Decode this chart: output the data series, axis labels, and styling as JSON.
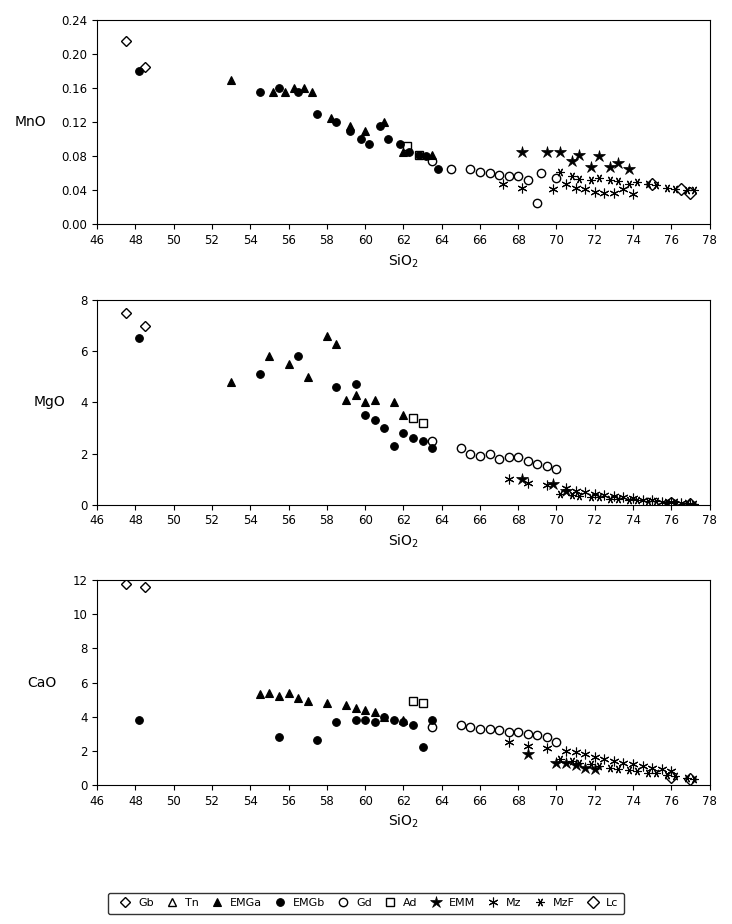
{
  "Gb": {
    "MnO": {
      "x": [
        47.5,
        48.5
      ],
      "y": [
        0.215,
        0.185
      ]
    },
    "MgO": {
      "x": [
        47.5,
        48.5
      ],
      "y": [
        7.5,
        7.0
      ]
    },
    "CaO": {
      "x": [
        47.5,
        48.5
      ],
      "y": [
        11.8,
        11.6
      ]
    }
  },
  "Tn": {
    "MnO": {
      "x": [],
      "y": []
    },
    "MgO": {
      "x": [],
      "y": []
    },
    "CaO": {
      "x": [],
      "y": []
    }
  },
  "EMGa": {
    "MnO": {
      "x": [
        53.0,
        55.2,
        55.8,
        56.3,
        56.8,
        57.2,
        58.2,
        59.2,
        60.0,
        61.0,
        62.0,
        63.5
      ],
      "y": [
        0.17,
        0.155,
        0.155,
        0.16,
        0.16,
        0.155,
        0.125,
        0.115,
        0.11,
        0.12,
        0.085,
        0.082
      ]
    },
    "MgO": {
      "x": [
        53.0,
        55.0,
        56.0,
        57.0,
        58.0,
        58.5,
        59.0,
        59.5,
        60.0,
        60.5,
        61.5,
        62.0
      ],
      "y": [
        4.8,
        5.8,
        5.5,
        5.0,
        6.6,
        6.3,
        4.1,
        4.3,
        4.0,
        4.1,
        4.0,
        3.5
      ]
    },
    "CaO": {
      "x": [
        54.5,
        55.0,
        55.5,
        56.0,
        56.5,
        57.0,
        58.0,
        59.0,
        59.5,
        60.0,
        60.5,
        61.0,
        62.0
      ],
      "y": [
        5.3,
        5.4,
        5.2,
        5.4,
        5.1,
        4.9,
        4.8,
        4.7,
        4.5,
        4.4,
        4.3,
        4.0,
        3.8
      ]
    }
  },
  "EMGb": {
    "MnO": {
      "x": [
        48.2,
        54.5,
        55.5,
        56.5,
        57.5,
        58.5,
        59.2,
        59.8,
        60.2,
        60.8,
        61.2,
        61.8,
        62.3,
        62.8,
        63.2,
        63.8
      ],
      "y": [
        0.18,
        0.155,
        0.16,
        0.155,
        0.13,
        0.12,
        0.11,
        0.1,
        0.095,
        0.115,
        0.1,
        0.095,
        0.085,
        0.082,
        0.08,
        0.065
      ]
    },
    "MgO": {
      "x": [
        48.2,
        54.5,
        56.5,
        58.5,
        59.5,
        60.0,
        60.5,
        61.0,
        61.5,
        62.0,
        62.5,
        63.0,
        63.5
      ],
      "y": [
        6.5,
        5.1,
        5.8,
        4.6,
        4.7,
        3.5,
        3.3,
        3.0,
        2.3,
        2.8,
        2.6,
        2.5,
        2.2
      ]
    },
    "CaO": {
      "x": [
        48.2,
        55.5,
        57.5,
        58.5,
        59.5,
        60.0,
        60.5,
        61.0,
        61.5,
        62.0,
        62.5,
        63.0,
        63.5
      ],
      "y": [
        3.8,
        2.8,
        2.6,
        3.7,
        3.8,
        3.8,
        3.7,
        4.0,
        3.8,
        3.7,
        3.5,
        2.2,
        3.8
      ]
    }
  },
  "Gd": {
    "MnO": {
      "x": [
        63.5,
        64.5,
        65.5,
        66.0,
        66.5,
        67.0,
        67.5,
        68.0,
        68.5,
        69.2,
        70.0
      ],
      "y": [
        0.075,
        0.065,
        0.065,
        0.062,
        0.06,
        0.058,
        0.057,
        0.057,
        0.052,
        0.06,
        0.055
      ]
    },
    "MgO": {
      "x": [
        63.5,
        65.0,
        65.5,
        66.0,
        66.5,
        67.0,
        67.5,
        68.0,
        68.5,
        69.0,
        69.5,
        70.0
      ],
      "y": [
        2.5,
        2.2,
        2.0,
        1.9,
        2.0,
        1.8,
        1.85,
        1.85,
        1.7,
        1.6,
        1.5,
        1.4
      ]
    },
    "CaO": {
      "x": [
        63.5,
        65.0,
        65.5,
        66.0,
        66.5,
        67.0,
        67.5,
        68.0,
        68.5,
        69.0,
        69.5,
        70.0
      ],
      "y": [
        3.4,
        3.5,
        3.4,
        3.3,
        3.3,
        3.2,
        3.1,
        3.1,
        3.0,
        2.9,
        2.8,
        2.5
      ]
    },
    "MnO_extra": {
      "x": [
        69.0
      ],
      "y": [
        0.025
      ]
    }
  },
  "Ad": {
    "MnO": {
      "x": [
        62.2,
        62.8
      ],
      "y": [
        0.092,
        0.082
      ]
    },
    "MgO": {
      "x": [
        62.5,
        63.0
      ],
      "y": [
        3.4,
        3.2
      ]
    },
    "CaO": {
      "x": [
        62.5,
        63.0
      ],
      "y": [
        4.9,
        4.8
      ]
    }
  },
  "EMM": {
    "MnO": {
      "x": [
        68.2,
        69.5,
        70.2,
        70.8,
        71.2,
        71.8,
        72.2,
        72.8,
        73.2,
        73.8
      ],
      "y": [
        0.085,
        0.085,
        0.085,
        0.075,
        0.082,
        0.068,
        0.08,
        0.068,
        0.072,
        0.065
      ]
    },
    "MgO": {
      "x": [
        68.2,
        69.8,
        70.5
      ],
      "y": [
        1.0,
        0.8,
        0.55
      ]
    },
    "CaO": {
      "x": [
        68.5,
        70.0,
        70.5,
        71.0,
        71.5,
        72.0
      ],
      "y": [
        1.8,
        1.3,
        1.25,
        1.15,
        1.0,
        0.9
      ]
    }
  },
  "Mz": {
    "MnO": {
      "x": [
        67.2,
        68.2,
        69.8,
        70.5,
        71.0,
        71.5,
        72.0,
        72.5,
        73.0,
        73.5,
        74.0
      ],
      "y": [
        0.047,
        0.043,
        0.042,
        0.048,
        0.043,
        0.042,
        0.038,
        0.037,
        0.037,
        0.042,
        0.036
      ]
    },
    "MgO": {
      "x": [
        67.5,
        68.5,
        69.5,
        70.5,
        71.0,
        71.5,
        72.0,
        72.5,
        73.0,
        73.5,
        74.0,
        74.5,
        75.0,
        75.5,
        76.0,
        76.5,
        77.0
      ],
      "y": [
        1.0,
        0.85,
        0.75,
        0.65,
        0.55,
        0.5,
        0.42,
        0.38,
        0.32,
        0.28,
        0.25,
        0.2,
        0.18,
        0.12,
        0.1,
        0.08,
        0.04
      ]
    },
    "CaO": {
      "x": [
        67.5,
        68.5,
        69.5,
        70.5,
        71.0,
        71.5,
        72.0,
        72.5,
        73.0,
        73.5,
        74.0,
        74.5,
        75.0,
        75.5,
        76.0
      ],
      "y": [
        2.5,
        2.3,
        2.15,
        2.0,
        1.95,
        1.8,
        1.65,
        1.5,
        1.4,
        1.3,
        1.2,
        1.1,
        1.0,
        0.9,
        0.8
      ]
    }
  },
  "MzF": {
    "MnO": {
      "x": [
        70.2,
        70.8,
        71.2,
        71.8,
        72.2,
        72.8,
        73.2,
        73.8,
        74.2,
        74.8,
        75.2,
        75.8,
        76.2,
        76.8,
        77.2
      ],
      "y": [
        0.062,
        0.057,
        0.053,
        0.052,
        0.055,
        0.052,
        0.051,
        0.048,
        0.05,
        0.048,
        0.046,
        0.043,
        0.042,
        0.041,
        0.04
      ]
    },
    "MgO": {
      "x": [
        70.2,
        70.8,
        71.2,
        71.8,
        72.2,
        72.8,
        73.2,
        73.8,
        74.2,
        74.8,
        75.2,
        75.8,
        76.2,
        76.8,
        77.2
      ],
      "y": [
        0.42,
        0.38,
        0.33,
        0.28,
        0.28,
        0.23,
        0.22,
        0.19,
        0.18,
        0.14,
        0.14,
        0.1,
        0.09,
        0.08,
        0.04
      ]
    },
    "CaO": {
      "x": [
        70.2,
        70.8,
        71.2,
        71.8,
        72.2,
        72.8,
        73.2,
        73.8,
        74.2,
        74.8,
        75.2,
        75.8,
        76.2,
        76.8,
        77.2
      ],
      "y": [
        1.5,
        1.4,
        1.3,
        1.2,
        1.1,
        1.0,
        0.92,
        0.85,
        0.8,
        0.7,
        0.68,
        0.58,
        0.5,
        0.42,
        0.35
      ]
    }
  },
  "Lc": {
    "MnO": {
      "x": [
        75.0,
        76.5,
        77.0
      ],
      "y": [
        0.047,
        0.042,
        0.037
      ]
    },
    "MgO": {
      "x": [
        76.0,
        77.0
      ],
      "y": [
        0.08,
        0.04
      ]
    },
    "CaO": {
      "x": [
        76.0,
        77.0
      ],
      "y": [
        0.45,
        0.35
      ]
    }
  },
  "xlim": [
    46,
    78
  ],
  "MnO_ylim": [
    0.0,
    0.24
  ],
  "MgO_ylim": [
    0.0,
    8.0
  ],
  "CaO_ylim": [
    0.0,
    12.0
  ],
  "xlabel": "SiO$_2$",
  "ylabel_MnO": "MnO",
  "ylabel_MgO": "MgO",
  "ylabel_CaO": "CaO",
  "xticks": [
    46,
    48,
    50,
    52,
    54,
    56,
    58,
    60,
    62,
    64,
    66,
    68,
    70,
    72,
    74,
    76,
    78
  ],
  "MnO_yticks": [
    0.0,
    0.04,
    0.08,
    0.12,
    0.16,
    0.2,
    0.24
  ],
  "MgO_yticks": [
    0.0,
    2.0,
    4.0,
    6.0,
    8.0
  ],
  "CaO_yticks": [
    0.0,
    2.0,
    4.0,
    6.0,
    8.0,
    10.0,
    12.0
  ]
}
